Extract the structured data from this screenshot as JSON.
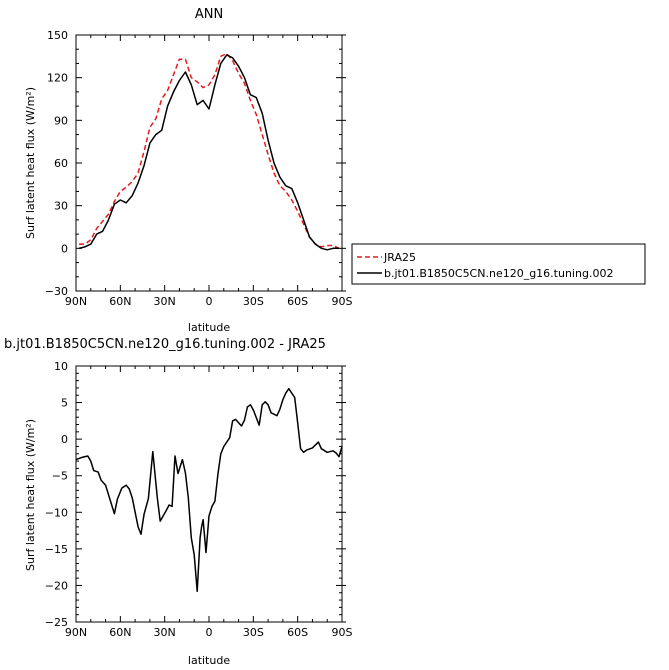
{
  "chart_data": [
    {
      "type": "line",
      "title": "ANN",
      "xlabel": "latitude",
      "ylabel": "Surf latent heat flux (W/m²)",
      "xlim": [
        90,
        -90
      ],
      "ylim": [
        -30,
        150
      ],
      "xticks": [
        90,
        60,
        30,
        0,
        -30,
        -60,
        -90
      ],
      "xticklabels": [
        "90N",
        "60N",
        "30N",
        "0",
        "30S",
        "60S",
        "90S"
      ],
      "yticks": [
        -30,
        0,
        30,
        60,
        90,
        120,
        150
      ],
      "legend_position": "outside-bottom-right",
      "series": [
        {
          "name": "JRA25",
          "color": "#e41a1c",
          "style": "dashed",
          "x": [
            88,
            84,
            80,
            76,
            72,
            68,
            64,
            60,
            56,
            52,
            48,
            44,
            40,
            36,
            32,
            28,
            24,
            20,
            16,
            12,
            8,
            4,
            0,
            -4,
            -8,
            -12,
            -16,
            -20,
            -24,
            -28,
            -32,
            -36,
            -40,
            -44,
            -48,
            -52,
            -56,
            -60,
            -64,
            -68,
            -72,
            -76,
            -80,
            -84,
            -88
          ],
          "values": [
            3,
            3,
            6,
            14,
            19,
            24,
            33,
            40,
            43,
            47,
            53,
            68,
            85,
            91,
            105,
            111,
            122,
            133,
            133,
            120,
            117,
            113,
            115,
            122,
            135,
            137,
            132,
            123,
            116,
            104,
            94,
            80,
            66,
            53,
            44,
            40,
            34,
            26,
            17,
            8,
            3,
            1,
            2,
            2,
            0
          ]
        },
        {
          "name": "b.jt01.B1850C5CN.ne120_g16.tuning.002",
          "color": "#000000",
          "style": "solid",
          "x": [
            88,
            84,
            80,
            76,
            72,
            68,
            64,
            60,
            56,
            52,
            48,
            44,
            40,
            36,
            32,
            28,
            24,
            20,
            16,
            12,
            8,
            4,
            0,
            -4,
            -8,
            -12,
            -16,
            -20,
            -24,
            -28,
            -32,
            -36,
            -40,
            -44,
            -48,
            -52,
            -56,
            -60,
            -64,
            -68,
            -72,
            -76,
            -80,
            -84,
            -88
          ],
          "values": [
            0,
            1,
            3,
            10,
            12,
            20,
            31,
            34,
            32,
            37,
            46,
            58,
            74,
            80,
            83,
            100,
            110,
            118,
            124,
            115,
            101,
            104,
            98,
            115,
            130,
            136,
            134,
            128,
            120,
            108,
            106,
            95,
            76,
            60,
            50,
            44,
            42,
            32,
            20,
            8,
            3,
            0,
            -1,
            0,
            0
          ]
        }
      ]
    },
    {
      "type": "line",
      "title": "b.jt01.B1850C5CN.ne120_g16.tuning.002 - JRA25",
      "xlabel": "latitude",
      "ylabel": "Surf latent heat flux (W/m²)",
      "xlim": [
        90,
        -90
      ],
      "ylim": [
        -25,
        10
      ],
      "xticks": [
        90,
        60,
        30,
        0,
        -30,
        -60,
        -90
      ],
      "xticklabels": [
        "90N",
        "60N",
        "30N",
        "0",
        "30S",
        "60S",
        "90S"
      ],
      "yticks": [
        -25,
        -20,
        -15,
        -10,
        -5,
        0,
        5,
        10
      ],
      "series": [
        {
          "color": "#000000",
          "style": "solid",
          "x": [
            90,
            86,
            82,
            80,
            78,
            75,
            73,
            70,
            68,
            64,
            62,
            59,
            56,
            54,
            52,
            48,
            46,
            44,
            41,
            38,
            35,
            33,
            31,
            29,
            27,
            25,
            23,
            21,
            18,
            16,
            14,
            12,
            10,
            8,
            6,
            5,
            4,
            2,
            0,
            -2,
            -4,
            -6,
            -8,
            -10,
            -14,
            -16,
            -18,
            -22,
            -24,
            -26,
            -28,
            -30,
            -34,
            -36,
            -38,
            -40,
            -42,
            -46,
            -48,
            -50,
            -52,
            -54,
            -58,
            -60,
            -62,
            -64,
            -66,
            -70,
            -74,
            -76,
            -80,
            -84,
            -86,
            -88,
            -90
          ],
          "values": [
            -2.8,
            -2.5,
            -2.3,
            -3.0,
            -4.3,
            -4.5,
            -5.6,
            -6.3,
            -7.6,
            -10.2,
            -8.2,
            -6.7,
            -6.3,
            -6.8,
            -8.0,
            -12.0,
            -13.0,
            -10.3,
            -8.1,
            -1.7,
            -8.0,
            -11.2,
            -10.5,
            -9.8,
            -9.0,
            -9.2,
            -2.3,
            -4.7,
            -2.8,
            -4.6,
            -8.0,
            -13.5,
            -15.8,
            -20.8,
            -13.5,
            -12.0,
            -11.0,
            -15.5,
            -10.5,
            -9.2,
            -8.5,
            -4.8,
            -2.0,
            -1.0,
            0.2,
            2.5,
            2.7,
            1.8,
            2.6,
            4.4,
            4.7,
            4.0,
            1.9,
            4.7,
            5.1,
            4.7,
            3.6,
            3.2,
            4.1,
            5.4,
            6.3,
            6.9,
            5.7,
            2.2,
            -1.3,
            -1.8,
            -1.5,
            -1.2,
            -0.4,
            -1.3,
            -1.8,
            -1.6,
            -1.9,
            -2.4,
            -1.0
          ]
        }
      ]
    }
  ],
  "legend": {
    "entries": [
      "JRA25",
      "b.jt01.B1850C5CN.ne120_g16.tuning.002"
    ]
  }
}
